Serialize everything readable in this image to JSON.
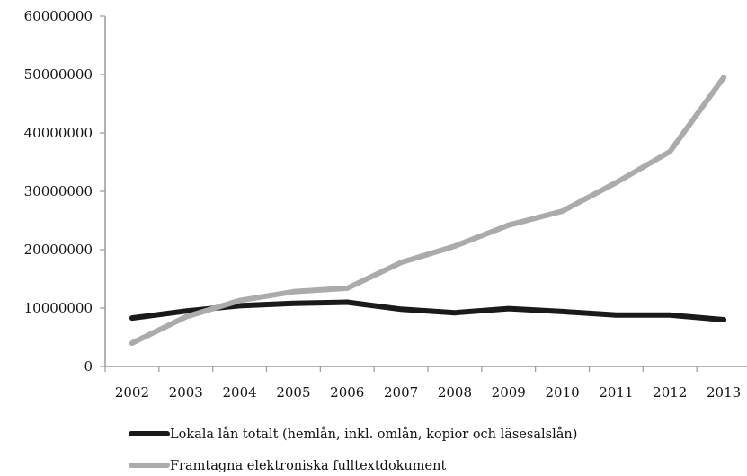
{
  "chart_data": {
    "type": "line",
    "title": "",
    "xlabel": "",
    "ylabel": "",
    "x": [
      "2002",
      "2003",
      "2004",
      "2005",
      "2006",
      "2007",
      "2008",
      "2009",
      "2010",
      "2011",
      "2012",
      "2013"
    ],
    "ylim": [
      0,
      60000000
    ],
    "yticks": [
      "0",
      "10000000",
      "20000000",
      "30000000",
      "40000000",
      "50000000",
      "60000000"
    ],
    "grid": false,
    "legend_position": "bottom",
    "series": [
      {
        "name": "Lokala lån totalt (hemlån, inkl. omlån, kopior och läsesalslån)",
        "color": "#1a1a1a",
        "values": [
          8300000,
          9500000,
          10400000,
          10800000,
          11000000,
          9800000,
          9200000,
          9900000,
          9400000,
          8800000,
          8800000,
          8000000
        ]
      },
      {
        "name": "Framtagna elektroniska fulltextdokument",
        "color": "#ababab",
        "values": [
          4000000,
          8500000,
          11300000,
          12800000,
          13400000,
          17800000,
          20600000,
          24200000,
          26600000,
          31500000,
          36800000,
          49500000
        ]
      }
    ]
  }
}
